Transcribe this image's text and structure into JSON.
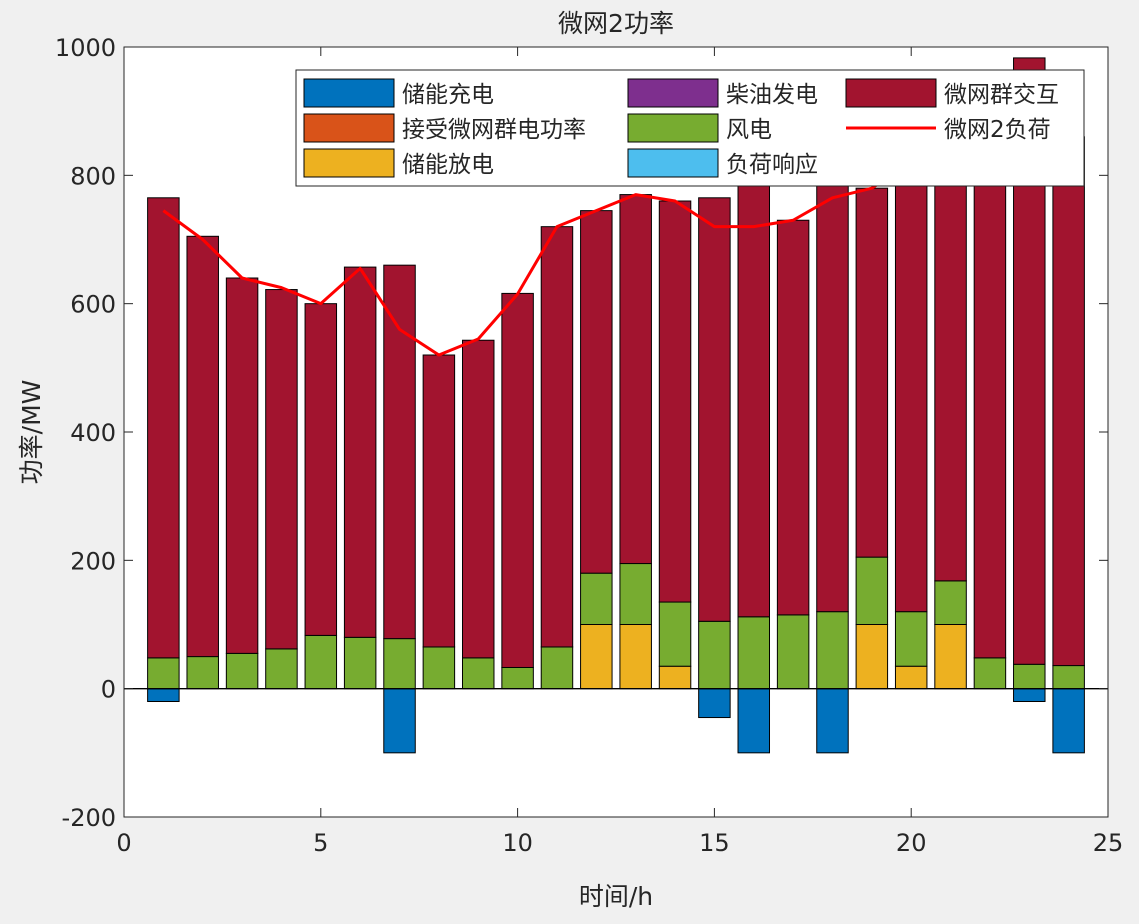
{
  "chart_data": {
    "type": "bar",
    "stacked": true,
    "title": "微网2功率",
    "xlabel": "时间/h",
    "ylabel": "功率/MW",
    "xlim": [
      0,
      25
    ],
    "ylim": [
      -200,
      1000
    ],
    "xticks": [
      "0",
      "5",
      "10",
      "15",
      "20",
      "25"
    ],
    "yticks": [
      "-200",
      "0",
      "200",
      "400",
      "600",
      "800",
      "1000"
    ],
    "legend_position": "top-right",
    "x": [
      1,
      2,
      3,
      4,
      5,
      6,
      7,
      8,
      9,
      10,
      11,
      12,
      13,
      14,
      15,
      16,
      17,
      18,
      19,
      20,
      21,
      22,
      23,
      24
    ],
    "series": [
      {
        "name": "储能充电",
        "color": "#0072bd",
        "values": [
          -20,
          0,
          0,
          0,
          0,
          0,
          -100,
          0,
          0,
          0,
          0,
          0,
          0,
          0,
          -45,
          -100,
          0,
          -100,
          0,
          0,
          0,
          0,
          -20,
          -100
        ]
      },
      {
        "name": "接受微网群电功率",
        "color": "#d95319",
        "values": [
          0,
          0,
          0,
          0,
          0,
          0,
          0,
          0,
          0,
          0,
          0,
          0,
          0,
          0,
          0,
          0,
          0,
          0,
          0,
          0,
          0,
          0,
          0,
          0
        ]
      },
      {
        "name": "储能放电",
        "color": "#edb120",
        "values": [
          0,
          0,
          0,
          0,
          0,
          0,
          0,
          0,
          0,
          0,
          0,
          100,
          100,
          35,
          0,
          0,
          0,
          0,
          100,
          35,
          100,
          0,
          0,
          0
        ]
      },
      {
        "name": "柴油发电",
        "color": "#7e2f8e",
        "values": [
          0,
          0,
          0,
          0,
          0,
          0,
          0,
          0,
          0,
          0,
          0,
          0,
          0,
          0,
          0,
          0,
          0,
          0,
          0,
          0,
          0,
          0,
          0,
          0
        ]
      },
      {
        "name": "风电",
        "color": "#77ac30",
        "values": [
          48,
          50,
          55,
          62,
          83,
          80,
          78,
          65,
          48,
          33,
          65,
          80,
          95,
          100,
          105,
          112,
          115,
          120,
          105,
          85,
          68,
          48,
          38,
          36
        ]
      },
      {
        "name": "负荷响应",
        "color": "#4dbeee",
        "values": [
          0,
          0,
          0,
          0,
          0,
          0,
          0,
          0,
          0,
          0,
          0,
          0,
          0,
          0,
          0,
          0,
          0,
          0,
          0,
          0,
          0,
          0,
          0,
          0
        ]
      },
      {
        "name": "微网群交互",
        "color": "#a2142f",
        "values": [
          717,
          655,
          585,
          560,
          517,
          577,
          582,
          455,
          495,
          583,
          655,
          565,
          575,
          625,
          660,
          765,
          615,
          760,
          575,
          780,
          720,
          792,
          945,
          824
        ]
      }
    ],
    "line": {
      "name": "微网2负荷",
      "color": "#ff0000",
      "values": [
        745,
        700,
        640,
        625,
        600,
        655,
        560,
        520,
        545,
        615,
        720,
        745,
        770,
        760,
        720,
        720,
        730,
        765,
        780,
        820,
        810,
        840,
        920,
        860
      ]
    }
  }
}
